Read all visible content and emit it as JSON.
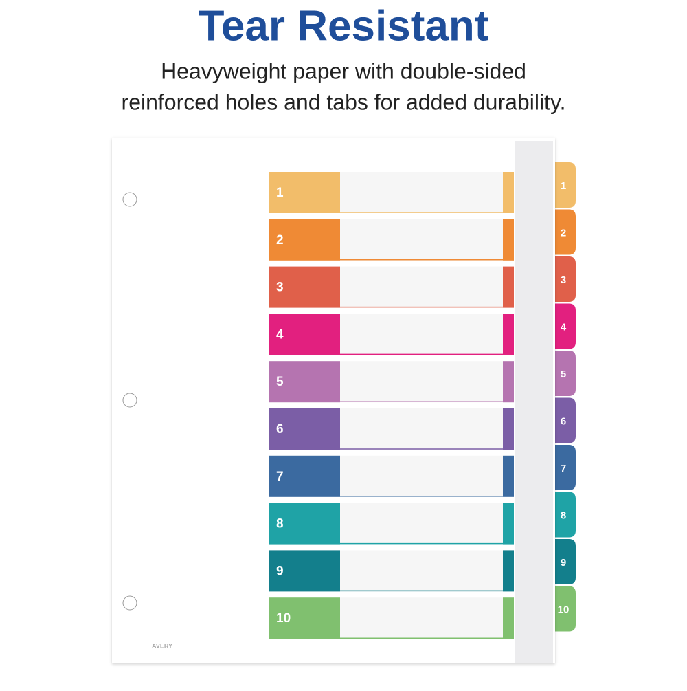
{
  "header": {
    "title": "Tear Resistant",
    "subtitle_lines": [
      "Heavyweight paper with double-sided",
      "reinforced holes and tabs for added durability."
    ]
  },
  "tabs": [
    {
      "label": "1",
      "color": "#f2bd6a"
    },
    {
      "label": "2",
      "color": "#ef8a35"
    },
    {
      "label": "3",
      "color": "#e0604a"
    },
    {
      "label": "4",
      "color": "#e2207f"
    },
    {
      "label": "5",
      "color": "#b574b0"
    },
    {
      "label": "6",
      "color": "#7b5ea6"
    },
    {
      "label": "7",
      "color": "#3b6aa0"
    },
    {
      "label": "8",
      "color": "#1fa3a6"
    },
    {
      "label": "9",
      "color": "#137f8c"
    },
    {
      "label": "10",
      "color": "#80c06f"
    }
  ],
  "brand": "AVERY"
}
